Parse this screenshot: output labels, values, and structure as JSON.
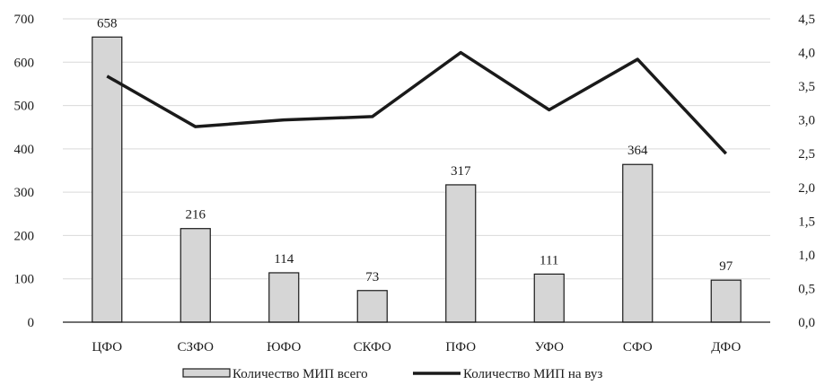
{
  "chart_data": {
    "type": "bar",
    "categories": [
      "ЦФО",
      "СЗФО",
      "ЮФО",
      "СКФО",
      "ПФО",
      "УФО",
      "СФО",
      "ДФО"
    ],
    "series": [
      {
        "name": "Количество МИП всего",
        "type": "bar",
        "axis": "left",
        "values": [
          658,
          216,
          114,
          73,
          317,
          111,
          364,
          97
        ]
      },
      {
        "name": "Количество МИП на вуз",
        "type": "line",
        "axis": "right",
        "values": [
          3.65,
          2.9,
          3.0,
          3.05,
          4.0,
          3.15,
          3.9,
          2.5
        ]
      }
    ],
    "data_labels": [
      "658",
      "216",
      "114",
      "73",
      "317",
      "111",
      "364",
      "97"
    ],
    "ylim": [
      0,
      700
    ],
    "y_ticks": [
      "0",
      "100",
      "200",
      "300",
      "400",
      "500",
      "600",
      "700"
    ],
    "y2lim": [
      0,
      4.5
    ],
    "y2_ticks": [
      "0,0",
      "0,5",
      "1,0",
      "1,5",
      "2,0",
      "2,5",
      "3,0",
      "3,5",
      "4,0",
      "4,5"
    ],
    "grid": true,
    "legend_position": "bottom",
    "colors": {
      "bar_fill": "#d6d6d6",
      "bar_stroke": "#1a1a1a",
      "line": "#1a1a1a",
      "grid": "#d9d9d9"
    }
  }
}
